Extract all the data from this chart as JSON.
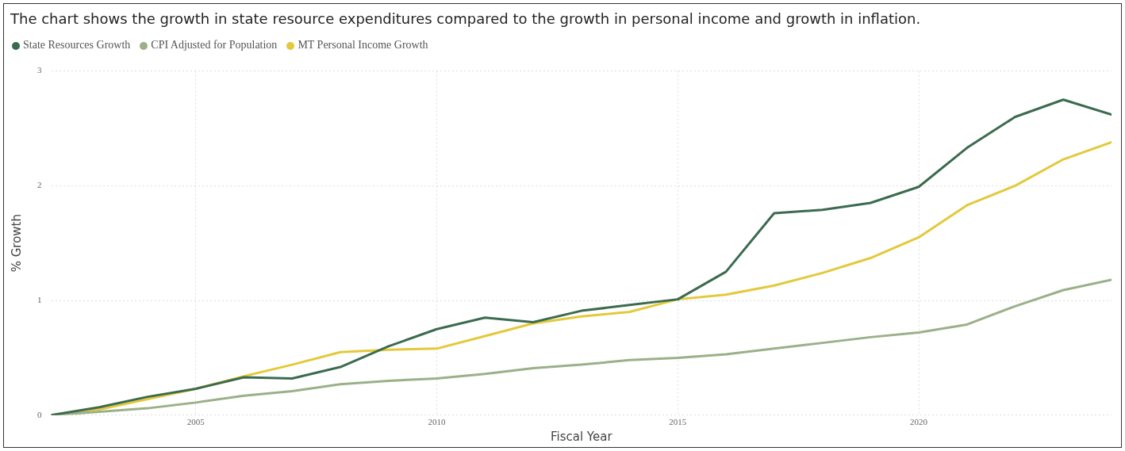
{
  "chart_data": {
    "type": "line",
    "title": "The chart shows the growth in state resource expenditures compared to the growth in personal income and growth in inflation.",
    "xlabel": "Fiscal Year",
    "ylabel": "% Growth",
    "x": [
      2002,
      2003,
      2004,
      2005,
      2006,
      2007,
      2008,
      2009,
      2010,
      2011,
      2012,
      2013,
      2014,
      2015,
      2016,
      2017,
      2018,
      2019,
      2020,
      2021,
      2022,
      2023,
      2024
    ],
    "series": [
      {
        "name": "State Resources Growth",
        "color": "#3b6b4f",
        "values": [
          0,
          0.07,
          0.16,
          0.23,
          0.33,
          0.32,
          0.42,
          0.6,
          0.75,
          0.85,
          0.81,
          0.91,
          0.96,
          1.01,
          1.25,
          1.76,
          1.79,
          1.85,
          1.99,
          2.33,
          2.6,
          2.75,
          2.62
        ]
      },
      {
        "name": "CPI Adjusted for Population",
        "color": "#9bb089",
        "values": [
          0,
          0.03,
          0.06,
          0.11,
          0.17,
          0.21,
          0.27,
          0.3,
          0.32,
          0.36,
          0.41,
          0.44,
          0.48,
          0.5,
          0.53,
          0.58,
          0.63,
          0.68,
          0.72,
          0.79,
          0.95,
          1.09,
          1.18
        ]
      },
      {
        "name": "MT Personal Income Growth",
        "color": "#e3c93b",
        "values": [
          0,
          0.05,
          0.14,
          0.23,
          0.34,
          0.44,
          0.55,
          0.57,
          0.58,
          0.69,
          0.8,
          0.86,
          0.9,
          1.01,
          1.05,
          1.13,
          1.24,
          1.37,
          1.55,
          1.83,
          2.0,
          2.23,
          2.38
        ]
      }
    ],
    "xlim": [
      2002,
      2024
    ],
    "xticks": [
      2005,
      2010,
      2015,
      2020
    ],
    "ylim": [
      0,
      3
    ],
    "yticks": [
      0,
      1,
      2,
      3
    ],
    "grid": true,
    "legend": "top left",
    "marker": "none",
    "line_style": "solid"
  }
}
